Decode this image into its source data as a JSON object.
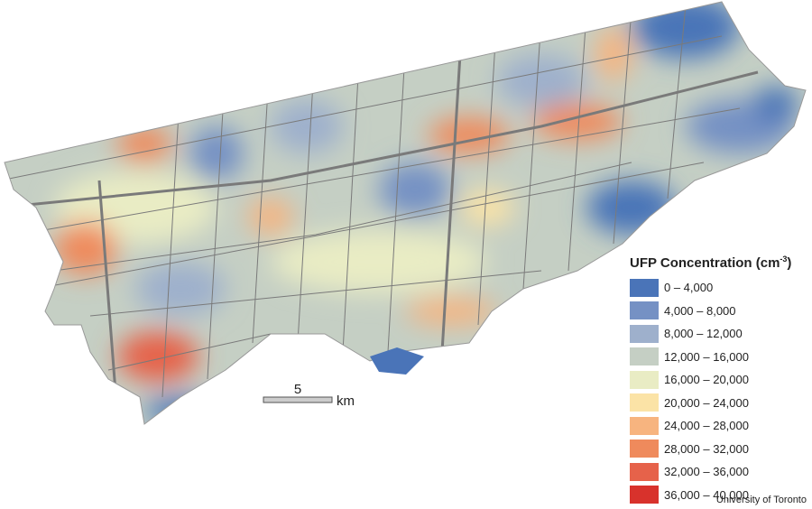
{
  "legend": {
    "title": "UFP Concentration (cm",
    "title_superscript": "-3",
    "title_end": ")",
    "items": [
      {
        "label": "0 – 4,000",
        "color": "#4a74b8"
      },
      {
        "label": "4,000 – 8,000",
        "color": "#7591c4"
      },
      {
        "label": "8,000 – 12,000",
        "color": "#9eb0cc"
      },
      {
        "label": "12,000 – 16,000",
        "color": "#c5cfc4"
      },
      {
        "label": "16,000 – 20,000",
        "color": "#e9ecc4"
      },
      {
        "label": "20,000 – 24,000",
        "color": "#fbe3a6"
      },
      {
        "label": "24,000 – 28,000",
        "color": "#f7b47f"
      },
      {
        "label": "28,000 – 32,000",
        "color": "#ef8a5c"
      },
      {
        "label": "32,000 – 36,000",
        "color": "#e6624a"
      },
      {
        "label": "36,000 – 40,000",
        "color": "#d8322c"
      }
    ]
  },
  "scale_bar": {
    "distance": "5",
    "unit": "km"
  },
  "credit": "University of Toronto"
}
